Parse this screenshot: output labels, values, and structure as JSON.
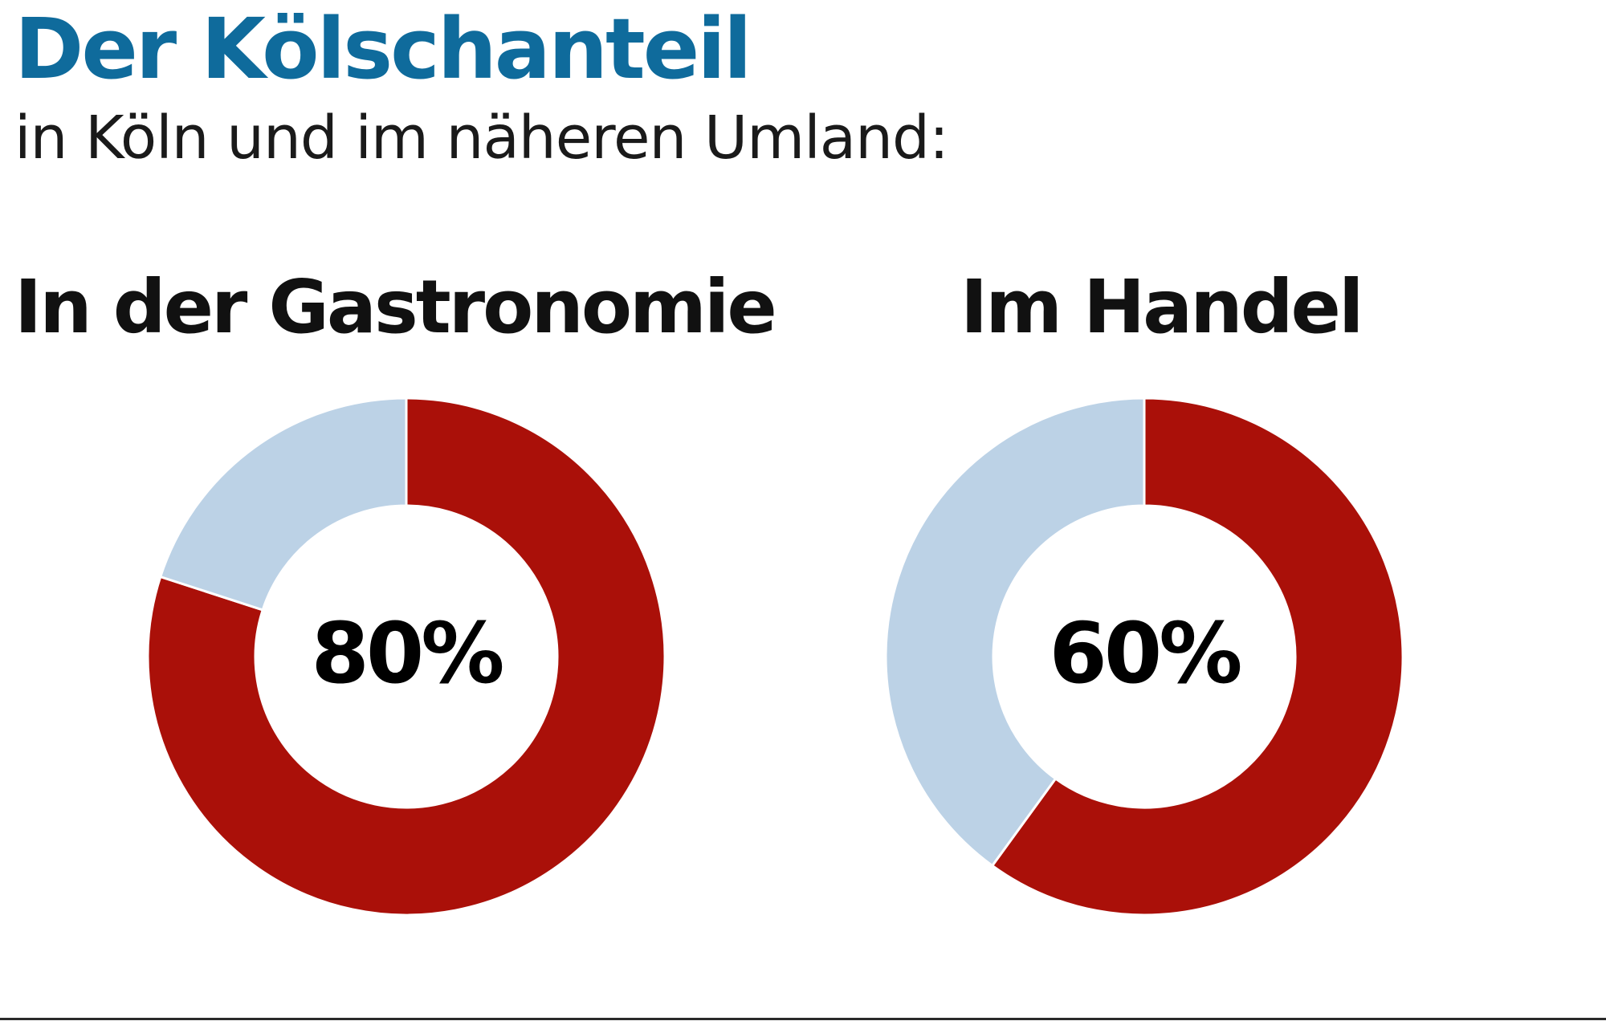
{
  "colors": {
    "title": "#0f6b9c",
    "share": "#aa1009",
    "rest": "#bcd2e6",
    "separator": "#ffffff"
  },
  "chart_data": [
    {
      "type": "pie",
      "donut": true,
      "title": "In der Gastronomie",
      "center_label": "80%",
      "slices": [
        {
          "value": 80,
          "color": "#aa1009"
        },
        {
          "value": 20,
          "color": "#bcd2e6"
        }
      ]
    },
    {
      "type": "pie",
      "donut": true,
      "title": "Im Handel",
      "center_label": "60%",
      "slices": [
        {
          "value": 60,
          "color": "#aa1009"
        },
        {
          "value": 40,
          "color": "#bcd2e6"
        }
      ]
    }
  ],
  "header": {
    "title": "Der Kölschanteil",
    "subtitle": "in Köln und im näheren Umland:"
  }
}
